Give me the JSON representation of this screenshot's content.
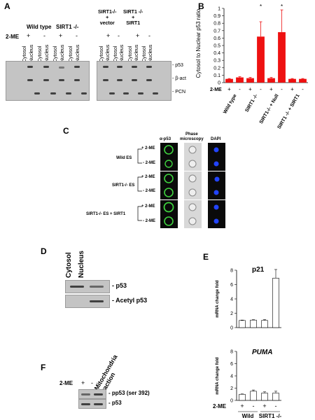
{
  "panelA": {
    "letter": "A",
    "left_headers": [
      "Wild type",
      "SIRT1 -/-"
    ],
    "right_headers": [
      "SIRT1-/-\n+\nvector",
      "SIRT1 -/-\n+\nSIRT1"
    ],
    "treatment_label": "2-ME",
    "treatment_signs": [
      "+",
      "-",
      "+",
      "-"
    ],
    "fraction_labels": [
      "Cytosol",
      "Nucleus"
    ],
    "row_labels": [
      "- p53",
      "- β-act",
      "- PCN"
    ]
  },
  "panelB": {
    "letter": "B",
    "treatment_label": "2-ME",
    "treatment_signs": [
      "+",
      "-",
      "+",
      "-",
      "+",
      "-",
      "+",
      "-"
    ],
    "group_labels": [
      "Wild type",
      "SIRT1 -/-",
      "SIRT1-/- + Null",
      "SIRT1 -/- + SIRT1"
    ],
    "significance_mark": "*"
  },
  "panelC": {
    "letter": "C",
    "col_headers": [
      "α-p53",
      "Phase\nmicroscopy",
      "DAPI"
    ],
    "group_labels": [
      "Wild ES",
      "SIRT1-/-  ES",
      "SIRT1-/- ES + SIRT1"
    ],
    "row_signs": [
      "+ 2-ME",
      "- 2-ME"
    ]
  },
  "panelD": {
    "letter": "D",
    "col_labels": [
      "Cytosol",
      "Nucleus"
    ],
    "row_labels": [
      "- p53",
      "- Acetyl p53"
    ]
  },
  "panelE": {
    "letter": "E",
    "title_top": "p21",
    "title_bottom": "PUMA",
    "ylabel": "mRNA change fold",
    "treatment_label": "2-ME",
    "treatment_signs": [
      "+",
      "-",
      "+",
      "-"
    ],
    "group_labels": [
      "Wild",
      "SIRT1 -/-"
    ]
  },
  "panelF": {
    "letter": "F",
    "treatment_label": "2-ME",
    "treatment_signs": [
      "+",
      "-"
    ],
    "fraction_label": "Mitochondria\nfraction",
    "row_labels": [
      "- pp53 (ser 392)",
      "- p53"
    ]
  },
  "chart_data": [
    {
      "type": "bar",
      "title": "",
      "ylabel": "Cytosol to Nuclear p53 ratio",
      "ylim": [
        0,
        1
      ],
      "yticks": [
        "0",
        "0.1",
        "0.2",
        "0.3",
        "0.4",
        "0.5",
        "0.6",
        "0.7",
        "0.8",
        "0.9",
        "1"
      ],
      "categories": [
        "Wild type +",
        "Wild type -",
        "SIRT1 -/- +",
        "SIRT1 -/- -",
        "SIRT1-/- + Null +",
        "SIRT1-/- + Null -",
        "SIRT1 -/- + SIRT1 +",
        "SIRT1 -/- + SIRT1 -"
      ],
      "values": [
        0.05,
        0.07,
        0.06,
        0.62,
        0.06,
        0.68,
        0.05,
        0.05
      ],
      "errors": [
        0.005,
        0.01,
        0.01,
        0.2,
        0.01,
        0.3,
        0.005,
        0.005
      ],
      "color": "#ee1111"
    },
    {
      "type": "bar",
      "title": "p21",
      "ylabel": "mRNA change fold",
      "ylim": [
        0,
        8
      ],
      "yticks": [
        "0",
        "2",
        "4",
        "6",
        "8"
      ],
      "categories": [
        "Wild +",
        "Wild -",
        "SIRT1 -/- +",
        "SIRT1 -/- -"
      ],
      "values": [
        1.0,
        1.05,
        1.0,
        6.9
      ],
      "errors": [
        0.05,
        0.05,
        0.1,
        1.2
      ],
      "color": "#ffffff"
    },
    {
      "type": "bar",
      "title": "PUMA",
      "ylabel": "mRNA change fold",
      "ylim": [
        0,
        8
      ],
      "yticks": [
        "0",
        "2",
        "4",
        "6",
        "8"
      ],
      "categories": [
        "Wild +",
        "Wild -",
        "SIRT1 -/- +",
        "SIRT1 -/- -"
      ],
      "values": [
        1.0,
        1.5,
        1.2,
        1.2
      ],
      "errors": [
        0.05,
        0.2,
        0.2,
        0.3
      ],
      "color": "#ffffff"
    }
  ]
}
